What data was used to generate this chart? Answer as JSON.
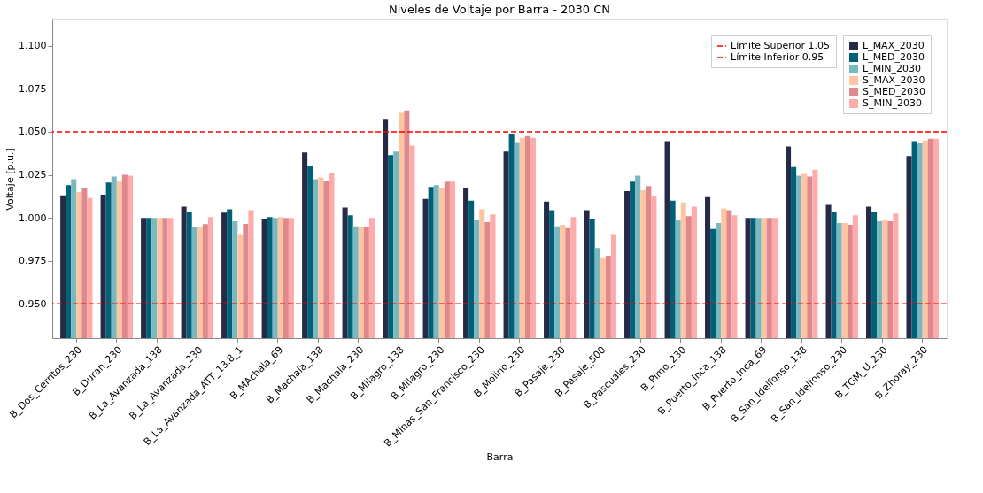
{
  "chart_data": {
    "type": "bar",
    "title": "Niveles de Voltaje por Barra - 2030 CN",
    "xlabel": "Barra",
    "ylabel": "Voltaje [p.u.]",
    "categories": [
      "B_Dos_Cerritos_230",
      "B_Duran_230",
      "B_La_Avanzada_138",
      "B_La_Avanzada_230",
      "B_La_Avanzada_ATT_13.8_1",
      "B_MAchala_69",
      "B_Machala_138",
      "B_Machala_230",
      "B_Milagro_138",
      "B_Milagro_230",
      "B_Minas_San_Francisco_230",
      "B_Molino_230",
      "B_Pasaje_230",
      "B_Pasaje_500",
      "B_Pascuales_230",
      "B_Pimo_230",
      "B_Puerto_Inca_138",
      "B_Puerto_Inca_69",
      "B_San_Idelfonso_138",
      "B_San_Idelfonso_230",
      "B_TGM_U_230",
      "B_Zhoray_230"
    ],
    "series": [
      {
        "name": "L_MAX_2030",
        "color": "#252a47",
        "values": [
          1.013,
          1.0135,
          1.0,
          1.0065,
          1.003,
          0.9995,
          1.038,
          1.006,
          1.057,
          1.011,
          1.0175,
          1.0385,
          1.0095,
          1.0045,
          1.0155,
          1.0445,
          1.012,
          1.0,
          1.0415,
          1.0075,
          1.0065,
          1.036
        ]
      },
      {
        "name": "L_MED_2030",
        "color": "#006075",
        "values": [
          1.019,
          1.0205,
          1.0,
          1.0037,
          1.005,
          1.0005,
          1.03,
          1.0015,
          1.0365,
          1.018,
          1.01,
          1.049,
          1.0045,
          0.9995,
          1.021,
          1.01,
          0.9935,
          1.0,
          1.0295,
          1.0035,
          1.0035,
          1.0445
        ]
      },
      {
        "name": "L_MIN_2030",
        "color": "#78b8bf",
        "values": [
          1.0225,
          1.024,
          1.0,
          0.9945,
          0.998,
          1.0,
          1.0225,
          0.995,
          1.0385,
          1.019,
          0.9985,
          1.044,
          0.995,
          0.9825,
          1.0245,
          0.9985,
          0.997,
          1.0,
          1.0245,
          0.997,
          0.998,
          1.0435
        ]
      },
      {
        "name": "S_MAX_2030",
        "color": "#ffc4a2",
        "values": [
          1.015,
          1.021,
          1.0,
          0.9945,
          0.9905,
          1.0005,
          1.0235,
          0.9945,
          1.061,
          1.0175,
          1.005,
          1.0465,
          0.996,
          0.977,
          1.016,
          1.009,
          1.0055,
          1.0,
          1.0255,
          0.997,
          0.9985,
          1.045
        ]
      },
      {
        "name": "S_MED_2030",
        "color": "#e0898d",
        "values": [
          1.0175,
          1.025,
          1.0,
          0.9963,
          0.9965,
          1.0,
          1.0215,
          0.9945,
          1.0625,
          1.021,
          0.9975,
          1.0475,
          0.994,
          0.978,
          1.0185,
          1.001,
          1.0045,
          1.0,
          1.024,
          0.996,
          0.998,
          1.046
        ]
      },
      {
        "name": "S_MIN_2030",
        "color": "#ffaaab",
        "values": [
          1.0115,
          1.0245,
          1.0,
          1.0005,
          1.0045,
          1.0,
          1.026,
          1.0,
          1.042,
          1.021,
          1.002,
          1.0465,
          1.0005,
          0.9905,
          1.0125,
          1.0065,
          1.0015,
          1.0,
          1.028,
          1.0015,
          1.0025,
          1.046
        ]
      }
    ],
    "ylim": [
      0.9301,
      1.1153
    ],
    "yticks": [
      {
        "value": 0.95,
        "label": "0.950"
      },
      0.975,
      {
        "value": 1.0,
        "label": "1.000"
      },
      1.025,
      {
        "value": 1.05,
        "label": "1.050"
      },
      1.075,
      {
        "value": 1.1,
        "label": "1.100"
      }
    ],
    "ref_lines": [
      {
        "axis": "y",
        "value": 1.05,
        "label": "Límite Superior 1.05",
        "color": "#ff0000",
        "line_style": "dashed"
      },
      {
        "axis": "y",
        "value": 0.95,
        "label": "Límite Inferior 0.95",
        "color": "#ff0000",
        "line_style": "dashed"
      }
    ],
    "grid": false,
    "legend": "top right"
  }
}
